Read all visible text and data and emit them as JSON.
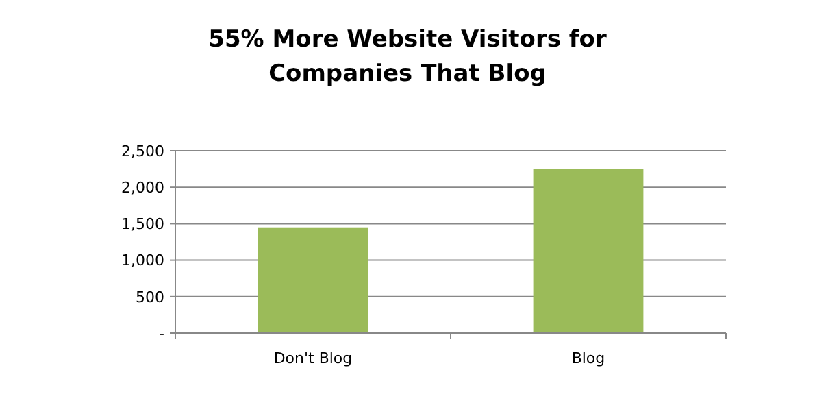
{
  "chart_data": {
    "type": "bar",
    "title": "55% More Website Visitors for Companies That Blog",
    "categories": [
      "Don't Blog",
      "Blog"
    ],
    "values": [
      1450,
      2250
    ],
    "color": "#9bbb59",
    "ylim": [
      0,
      2500
    ],
    "yticks": [
      {
        "value": 0,
        "label": "-"
      },
      500,
      {
        "value": 1000,
        "label": "1,000"
      },
      {
        "value": 1500,
        "label": "1,500"
      },
      {
        "value": 2000,
        "label": "2,000"
      },
      {
        "value": 2500,
        "label": "2,500"
      }
    ],
    "grid": "y"
  }
}
